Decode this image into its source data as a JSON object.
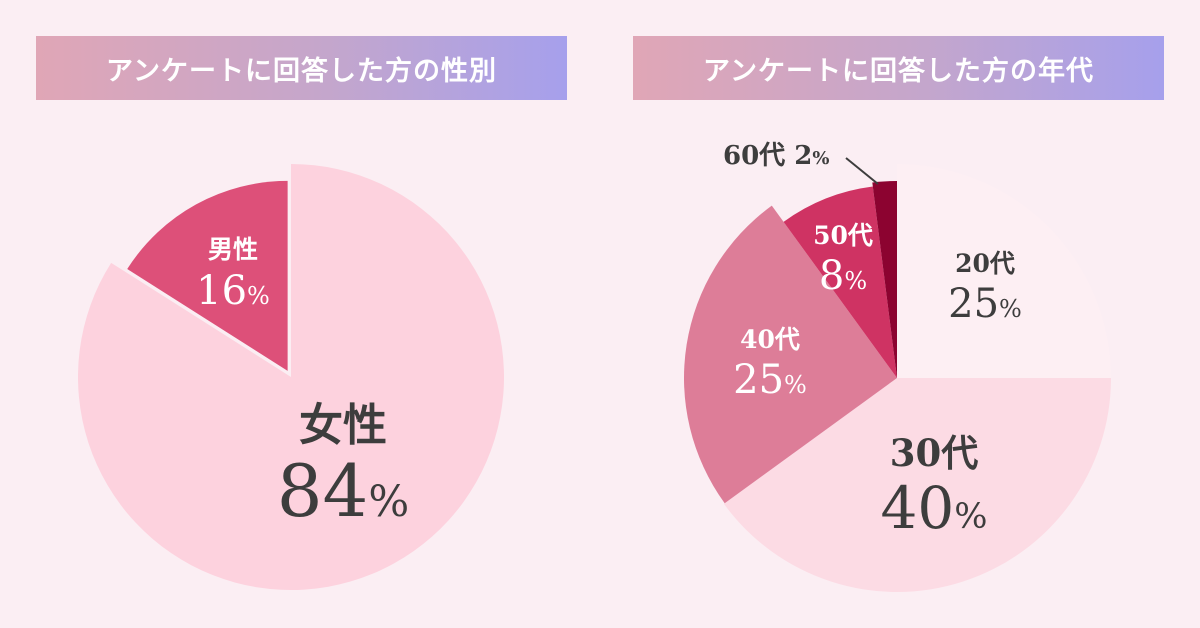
{
  "colors": {
    "background": "#fbeef3",
    "header_gradient_start": "#e0a6b6",
    "header_gradient_end": "#a6a0ec",
    "label_dark": "#3d3d3d",
    "label_light": "#ffffff"
  },
  "chart_data": [
    {
      "type": "pie",
      "title": "アンケートに回答した方の性別",
      "slices": [
        {
          "label": "女性",
          "value": 84,
          "display": "84",
          "color": "#fdd2de",
          "text_color": "#3d3d3d"
        },
        {
          "label": "男性",
          "value": 16,
          "display": "16",
          "color": "#dd5079",
          "text_color": "#ffffff"
        }
      ],
      "unit": "%"
    },
    {
      "type": "pie",
      "title": "アンケートに回答した方の年代",
      "slices": [
        {
          "label": "20代",
          "value": 25,
          "display": "25",
          "color": "#fdeff3",
          "text_color": "#3d3d3d"
        },
        {
          "label": "30代",
          "value": 40,
          "display": "40",
          "color": "#fcdbe4",
          "text_color": "#3d3d3d"
        },
        {
          "label": "40代",
          "value": 25,
          "display": "25",
          "color": "#dd7d98",
          "text_color": "#ffffff"
        },
        {
          "label": "50代",
          "value": 8,
          "display": "8",
          "color": "#cf3363",
          "text_color": "#ffffff"
        },
        {
          "label": "60代",
          "value": 2,
          "display": "2",
          "color": "#8c0330",
          "text_color": "#3d3d3d"
        }
      ],
      "unit": "%"
    }
  ]
}
